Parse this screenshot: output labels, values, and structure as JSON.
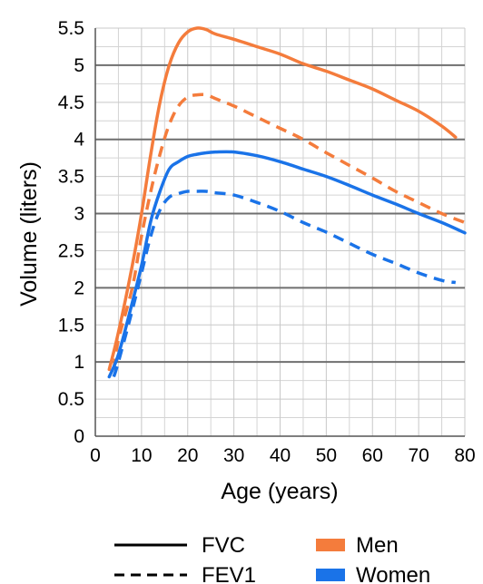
{
  "chart_data": {
    "type": "line",
    "xlabel": "Age (years)",
    "ylabel": "Volume (liters)",
    "xlim": [
      0,
      80
    ],
    "ylim": [
      0,
      5.5
    ],
    "x_ticks": [
      "0",
      "10",
      "20",
      "30",
      "40",
      "50",
      "60",
      "70",
      "80"
    ],
    "y_ticks": [
      "0",
      "0.5",
      "1",
      "1.5",
      "2",
      "2.5",
      "3",
      "3.5",
      "4",
      "4.5",
      "5",
      "5.5"
    ],
    "grid": true,
    "legend": {
      "position": "bottom",
      "line_styles": [
        {
          "label": "FVC",
          "style": "solid"
        },
        {
          "label": "FEV1",
          "style": "dashed"
        }
      ],
      "colors": [
        {
          "label": "Men",
          "color": "#f47c3c"
        },
        {
          "label": "Women",
          "color": "#1a73e8"
        }
      ]
    },
    "series": [
      {
        "sex": "Men",
        "measure": "FVC",
        "color": "#f47c3c",
        "style": "solid",
        "x": [
          3,
          5,
          8,
          10,
          12,
          14,
          16,
          18,
          20,
          22,
          24,
          26,
          30,
          35,
          40,
          45,
          50,
          55,
          60,
          65,
          70,
          75,
          78
        ],
        "y": [
          0.9,
          1.4,
          2.3,
          3.0,
          3.8,
          4.5,
          5.0,
          5.3,
          5.45,
          5.5,
          5.48,
          5.42,
          5.35,
          5.25,
          5.15,
          5.02,
          4.92,
          4.8,
          4.68,
          4.53,
          4.38,
          4.18,
          4.03
        ]
      },
      {
        "sex": "Men",
        "measure": "FEV1",
        "color": "#f47c3c",
        "style": "dashed",
        "x": [
          4,
          5,
          8,
          10,
          12,
          14,
          16,
          18,
          20,
          22,
          24,
          26,
          30,
          35,
          40,
          45,
          50,
          55,
          60,
          65,
          70,
          75,
          80
        ],
        "y": [
          0.9,
          1.3,
          2.0,
          2.7,
          3.3,
          3.8,
          4.2,
          4.45,
          4.57,
          4.6,
          4.6,
          4.55,
          4.45,
          4.3,
          4.15,
          4.0,
          3.82,
          3.65,
          3.48,
          3.3,
          3.15,
          3.0,
          2.88
        ]
      },
      {
        "sex": "Women",
        "measure": "FVC",
        "color": "#1a73e8",
        "style": "solid",
        "x": [
          3,
          5,
          8,
          10,
          12,
          14,
          16,
          18,
          20,
          22,
          24,
          26,
          30,
          35,
          40,
          45,
          50,
          55,
          60,
          65,
          70,
          75,
          80
        ],
        "y": [
          0.8,
          1.1,
          1.8,
          2.3,
          2.9,
          3.3,
          3.6,
          3.7,
          3.77,
          3.8,
          3.82,
          3.83,
          3.83,
          3.78,
          3.7,
          3.6,
          3.5,
          3.38,
          3.25,
          3.13,
          3.0,
          2.88,
          2.74
        ]
      },
      {
        "sex": "Women",
        "measure": "FEV1",
        "color": "#1a73e8",
        "style": "dashed",
        "x": [
          4,
          5,
          8,
          10,
          12,
          14,
          16,
          18,
          20,
          22,
          24,
          26,
          30,
          35,
          40,
          45,
          50,
          55,
          60,
          65,
          70,
          75,
          78
        ],
        "y": [
          0.8,
          1.0,
          1.7,
          2.2,
          2.7,
          3.05,
          3.22,
          3.27,
          3.3,
          3.3,
          3.3,
          3.28,
          3.25,
          3.15,
          3.03,
          2.88,
          2.75,
          2.6,
          2.45,
          2.33,
          2.2,
          2.1,
          2.07
        ]
      }
    ]
  }
}
